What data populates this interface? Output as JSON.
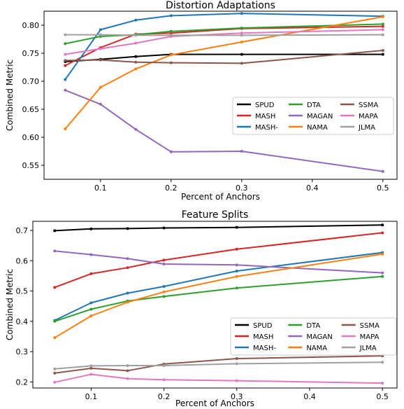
{
  "chart_data": [
    {
      "type": "line",
      "title": "Distortion Adaptations",
      "xlabel": "Percent of Anchors",
      "ylabel": "Combined Metric",
      "xlim": [
        0.02,
        0.52
      ],
      "ylim": [
        0.525,
        0.825
      ],
      "xticks": [
        0.1,
        0.2,
        0.3,
        0.4,
        0.5
      ],
      "xtick_labels": [
        "0.1",
        "0.2",
        "0.3",
        "0.4",
        "0.5"
      ],
      "yticks": [
        0.55,
        0.6,
        0.65,
        0.7,
        0.75,
        0.8
      ],
      "ytick_labels": [
        "0.55",
        "0.60",
        "0.65",
        "0.70",
        "0.75",
        "0.80"
      ],
      "legend": "center-right",
      "grid": false,
      "x": [
        0.05,
        0.1,
        0.15,
        0.2,
        0.3,
        0.5
      ],
      "series": [
        {
          "name": "SPUD",
          "color": "#000000",
          "values": [
            0.735,
            0.739,
            0.744,
            0.748,
            0.748,
            0.748
          ]
        },
        {
          "name": "MASH",
          "color": "#d62728",
          "values": [
            0.728,
            0.76,
            0.784,
            0.786,
            0.794,
            0.798
          ]
        },
        {
          "name": "MASH-",
          "color": "#1f77b4",
          "values": [
            0.703,
            0.792,
            0.809,
            0.817,
            0.821,
            0.816
          ]
        },
        {
          "name": "DTA",
          "color": "#2ca02c",
          "values": [
            0.767,
            0.78,
            0.783,
            0.789,
            0.795,
            0.802
          ]
        },
        {
          "name": "MAGAN",
          "color": "#9467bd",
          "values": [
            0.684,
            0.659,
            0.614,
            0.574,
            0.575,
            0.539
          ]
        },
        {
          "name": "NAMA",
          "color": "#ff7f0e",
          "values": [
            0.615,
            0.689,
            0.722,
            0.747,
            0.77,
            0.815
          ]
        },
        {
          "name": "SSMA",
          "color": "#8c564b",
          "values": [
            0.737,
            0.738,
            0.734,
            0.733,
            0.732,
            0.755
          ]
        },
        {
          "name": "MAPA",
          "color": "#e377c2",
          "values": [
            0.748,
            0.758,
            0.768,
            0.78,
            0.786,
            0.792
          ]
        },
        {
          "name": "JLMA",
          "color": "#a0a0a0",
          "values": [
            0.783,
            0.783,
            0.782,
            0.782,
            0.782,
            0.783
          ]
        }
      ]
    },
    {
      "type": "line",
      "title": "Feature Splits",
      "xlabel": "Percent of Anchors",
      "ylabel": "Combined Metric",
      "xlim": [
        0.02,
        0.52
      ],
      "ylim": [
        0.18,
        0.73
      ],
      "xticks": [
        0.1,
        0.2,
        0.3,
        0.4,
        0.5
      ],
      "xtick_labels": [
        "0.1",
        "0.2",
        "0.3",
        "0.4",
        "0.5"
      ],
      "yticks": [
        0.2,
        0.3,
        0.4,
        0.5,
        0.6,
        0.7
      ],
      "ytick_labels": [
        "0.2",
        "0.3",
        "0.4",
        "0.5",
        "0.6",
        "0.7"
      ],
      "legend": "lower-right",
      "grid": false,
      "x": [
        0.05,
        0.1,
        0.15,
        0.2,
        0.3,
        0.5
      ],
      "series": [
        {
          "name": "SPUD",
          "color": "#000000",
          "values": [
            0.699,
            0.705,
            0.706,
            0.708,
            0.71,
            0.718
          ]
        },
        {
          "name": "MASH",
          "color": "#d62728",
          "values": [
            0.512,
            0.557,
            0.577,
            0.602,
            0.638,
            0.692
          ]
        },
        {
          "name": "MASH-",
          "color": "#1f77b4",
          "values": [
            0.403,
            0.461,
            0.493,
            0.515,
            0.566,
            0.627
          ]
        },
        {
          "name": "DTA",
          "color": "#2ca02c",
          "values": [
            0.4,
            0.44,
            0.467,
            0.482,
            0.51,
            0.548
          ]
        },
        {
          "name": "MAGAN",
          "color": "#9467bd",
          "values": [
            0.632,
            0.62,
            0.607,
            0.589,
            0.586,
            0.56
          ]
        },
        {
          "name": "NAMA",
          "color": "#ff7f0e",
          "values": [
            0.346,
            0.418,
            0.463,
            0.497,
            0.548,
            0.622
          ]
        },
        {
          "name": "SSMA",
          "color": "#8c564b",
          "values": [
            0.229,
            0.245,
            0.237,
            0.259,
            0.277,
            0.286
          ]
        },
        {
          "name": "MAPA",
          "color": "#e377c2",
          "values": [
            0.199,
            0.225,
            0.211,
            0.207,
            0.204,
            0.196
          ]
        },
        {
          "name": "JLMA",
          "color": "#a0a0a0",
          "values": [
            0.243,
            0.253,
            0.254,
            0.254,
            0.26,
            0.265
          ]
        }
      ]
    }
  ]
}
